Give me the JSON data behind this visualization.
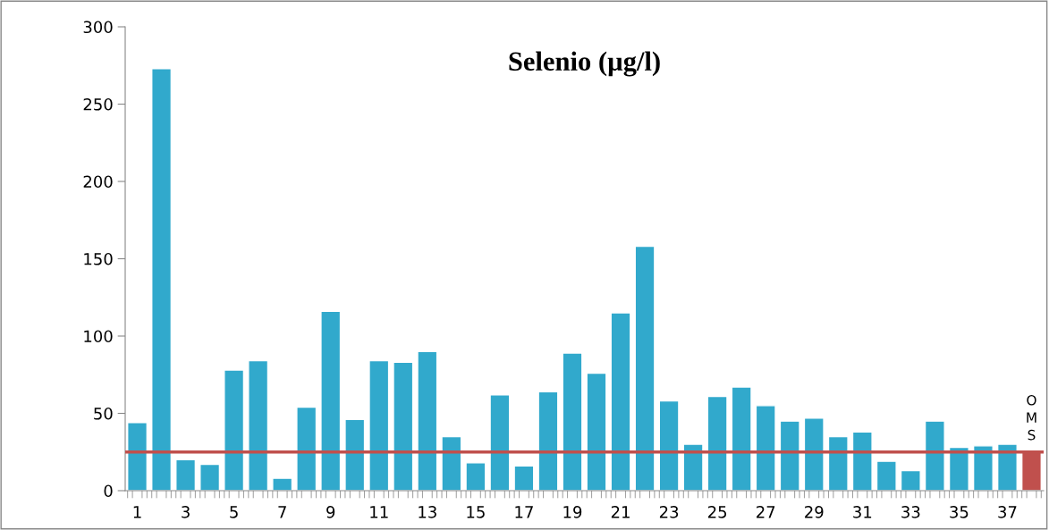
{
  "chart_data": {
    "type": "bar",
    "title": "Selenio (µg/l)",
    "categories": [
      "1",
      null,
      "3",
      null,
      "5",
      null,
      "7",
      null,
      "9",
      null,
      "11",
      null,
      "13",
      null,
      "15",
      null,
      "17",
      null,
      "19",
      null,
      "21",
      null,
      "23",
      null,
      "25",
      null,
      "27",
      null,
      "29",
      null,
      "31",
      null,
      "33",
      null,
      "35",
      null,
      "37",
      null
    ],
    "values": [
      44,
      273,
      20,
      17,
      78,
      84,
      8,
      54,
      116,
      46,
      84,
      83,
      90,
      35,
      18,
      62,
      16,
      64,
      89,
      76,
      115,
      158,
      58,
      30,
      61,
      67,
      55,
      45,
      47,
      35,
      38,
      19,
      13,
      45,
      28,
      29,
      30,
      25
    ],
    "colors": [
      "#31a9cc",
      "#31a9cc",
      "#31a9cc",
      "#31a9cc",
      "#31a9cc",
      "#31a9cc",
      "#31a9cc",
      "#31a9cc",
      "#31a9cc",
      "#31a9cc",
      "#31a9cc",
      "#31a9cc",
      "#31a9cc",
      "#31a9cc",
      "#31a9cc",
      "#31a9cc",
      "#31a9cc",
      "#31a9cc",
      "#31a9cc",
      "#31a9cc",
      "#31a9cc",
      "#31a9cc",
      "#31a9cc",
      "#31a9cc",
      "#31a9cc",
      "#31a9cc",
      "#31a9cc",
      "#31a9cc",
      "#31a9cc",
      "#31a9cc",
      "#31a9cc",
      "#31a9cc",
      "#31a9cc",
      "#31a9cc",
      "#31a9cc",
      "#31a9cc",
      "#31a9cc",
      "#c0504d"
    ],
    "ylim": [
      0,
      300
    ],
    "yticks": [
      0,
      50,
      100,
      150,
      200,
      250,
      300
    ],
    "ref_lines": [
      {
        "axis": "y",
        "value": 25,
        "color": "#c0504d"
      }
    ],
    "annotations": [
      "OMS"
    ]
  }
}
